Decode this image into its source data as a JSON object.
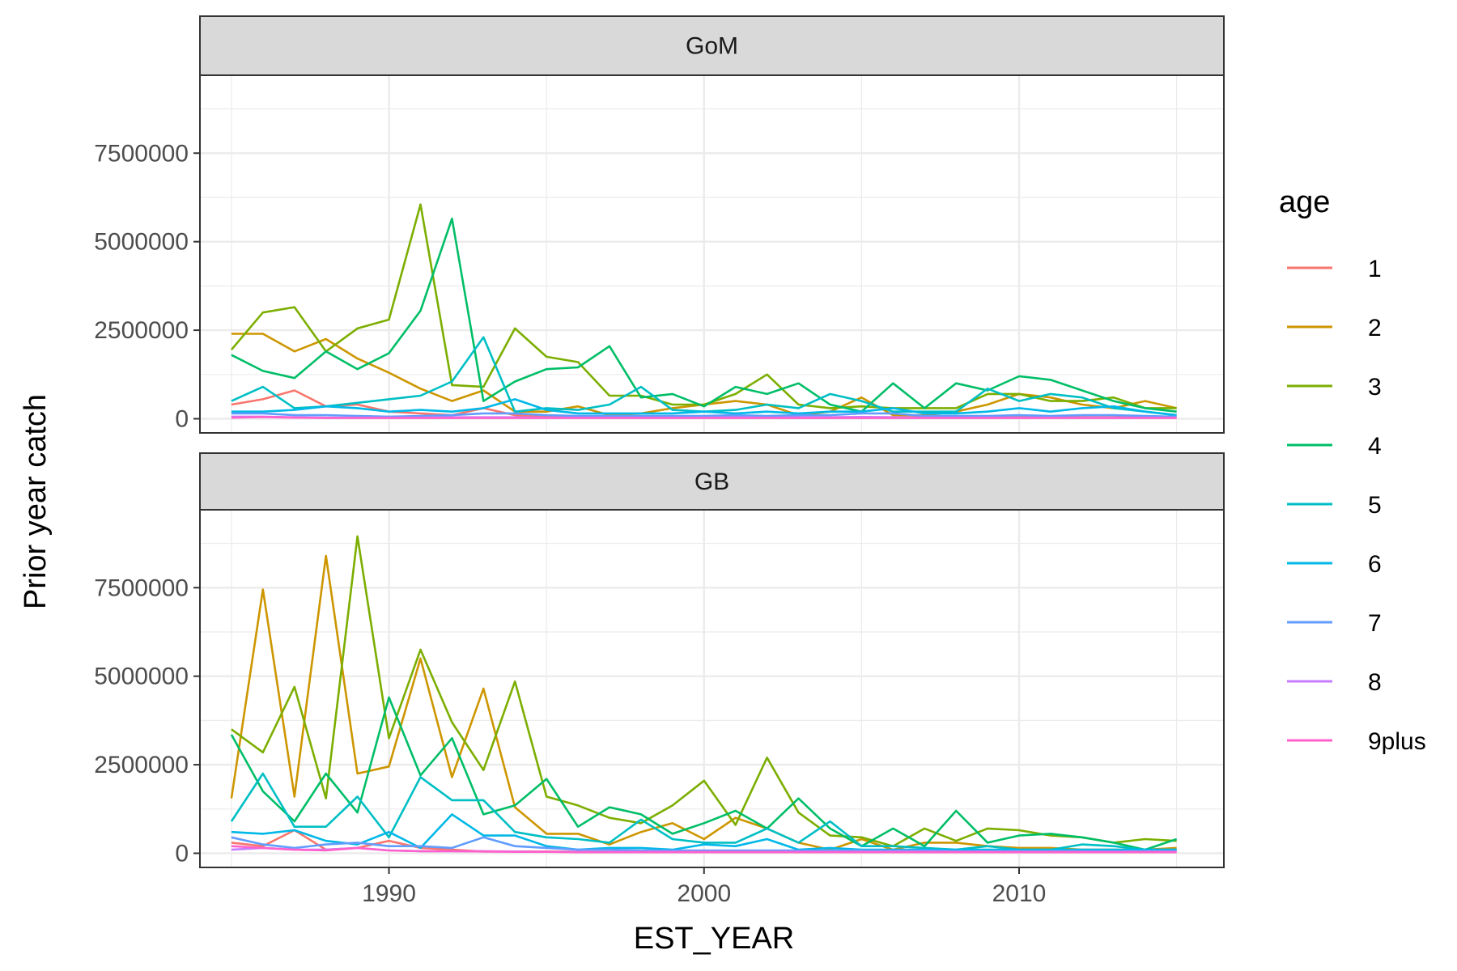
{
  "chart_data": {
    "type": "line",
    "xlabel": "EST_YEAR",
    "ylabel": "Prior year catch",
    "xlim": [
      1984,
      2016.5
    ],
    "ylim": [
      -400000,
      9700000
    ],
    "x_ticks": [
      1990,
      2000,
      2010
    ],
    "y_ticks": [
      0,
      2500000,
      5000000,
      7500000
    ],
    "grid": true,
    "legend": {
      "title": "age",
      "placement": "right"
    },
    "x": [
      1985,
      1986,
      1987,
      1988,
      1989,
      1990,
      1991,
      1992,
      1993,
      1994,
      1995,
      1996,
      1997,
      1998,
      1999,
      2000,
      2001,
      2002,
      2003,
      2004,
      2005,
      2006,
      2007,
      2008,
      2009,
      2010,
      2011,
      2012,
      2013,
      2014,
      2015
    ],
    "panels": [
      {
        "strip": "GoM",
        "series": [
          {
            "name": "1",
            "color": "#F8766D",
            "values": [
              400000,
              550000,
              800000,
              350000,
              400000,
              200000,
              150000,
              100000,
              300000,
              100000,
              50000,
              50000,
              40000,
              40000,
              40000,
              40000,
              40000,
              40000,
              40000,
              40000,
              40000,
              40000,
              40000,
              40000,
              40000,
              40000,
              40000,
              40000,
              40000,
              40000,
              40000
            ]
          },
          {
            "name": "2",
            "color": "#CD9600",
            "values": [
              2400000,
              2400000,
              1900000,
              2250000,
              1700000,
              1300000,
              850000,
              500000,
              800000,
              200000,
              200000,
              350000,
              100000,
              150000,
              300000,
              400000,
              500000,
              400000,
              100000,
              200000,
              600000,
              100000,
              100000,
              200000,
              400000,
              700000,
              600000,
              400000,
              300000,
              500000,
              300000
            ]
          },
          {
            "name": "3",
            "color": "#7CAE00",
            "values": [
              1950000,
              3000000,
              3150000,
              1900000,
              2550000,
              2800000,
              6050000,
              950000,
              900000,
              2550000,
              1750000,
              1600000,
              650000,
              650000,
              400000,
              400000,
              700000,
              1250000,
              400000,
              300000,
              350000,
              300000,
              300000,
              300000,
              700000,
              700000,
              500000,
              500000,
              600000,
              300000,
              300000
            ]
          },
          {
            "name": "4",
            "color": "#00BE67",
            "values": [
              1800000,
              1350000,
              1150000,
              1900000,
              1400000,
              1850000,
              3050000,
              5650000,
              500000,
              1050000,
              1400000,
              1450000,
              2050000,
              600000,
              700000,
              350000,
              900000,
              700000,
              1000000,
              400000,
              200000,
              1000000,
              300000,
              1000000,
              800000,
              1200000,
              1100000,
              800000,
              500000,
              300000,
              200000
            ]
          },
          {
            "name": "5",
            "color": "#00BFC4",
            "values": [
              500000,
              900000,
              300000,
              350000,
              450000,
              550000,
              650000,
              1050000,
              2300000,
              200000,
              300000,
              250000,
              400000,
              900000,
              250000,
              200000,
              250000,
              400000,
              300000,
              700000,
              500000,
              200000,
              200000,
              200000,
              850000,
              500000,
              700000,
              600000,
              300000,
              200000,
              100000
            ]
          },
          {
            "name": "6",
            "color": "#00B8E7",
            "values": [
              200000,
              200000,
              250000,
              350000,
              300000,
              200000,
              250000,
              200000,
              300000,
              550000,
              250000,
              150000,
              150000,
              150000,
              150000,
              200000,
              150000,
              200000,
              150000,
              200000,
              200000,
              300000,
              150000,
              150000,
              200000,
              300000,
              200000,
              300000,
              350000,
              200000,
              100000
            ]
          },
          {
            "name": "7",
            "color": "#619CFF",
            "values": [
              150000,
              150000,
              100000,
              100000,
              80000,
              60000,
              80000,
              100000,
              150000,
              150000,
              100000,
              80000,
              80000,
              80000,
              80000,
              80000,
              100000,
              80000,
              100000,
              100000,
              150000,
              150000,
              80000,
              80000,
              80000,
              100000,
              80000,
              100000,
              100000,
              80000,
              60000
            ]
          },
          {
            "name": "8",
            "color": "#C77CFF",
            "values": [
              60000,
              60000,
              40000,
              30000,
              30000,
              30000,
              30000,
              40000,
              40000,
              40000,
              30000,
              30000,
              30000,
              30000,
              30000,
              30000,
              40000,
              30000,
              40000,
              40000,
              50000,
              40000,
              30000,
              30000,
              30000,
              30000,
              30000,
              30000,
              30000,
              30000,
              30000
            ]
          },
          {
            "name": "9plus",
            "color": "#FF61CC",
            "values": [
              30000,
              50000,
              30000,
              20000,
              20000,
              20000,
              20000,
              20000,
              20000,
              20000,
              20000,
              20000,
              20000,
              20000,
              20000,
              20000,
              20000,
              20000,
              20000,
              20000,
              20000,
              20000,
              20000,
              20000,
              20000,
              20000,
              20000,
              20000,
              20000,
              20000,
              20000
            ]
          }
        ]
      },
      {
        "strip": "GB",
        "series": [
          {
            "name": "1",
            "color": "#F8766D",
            "values": [
              300000,
              200000,
              650000,
              100000,
              150000,
              350000,
              150000,
              100000,
              50000,
              50000,
              50000,
              40000,
              40000,
              40000,
              40000,
              40000,
              40000,
              40000,
              40000,
              40000,
              40000,
              40000,
              40000,
              40000,
              40000,
              40000,
              40000,
              40000,
              40000,
              40000,
              40000
            ]
          },
          {
            "name": "2",
            "color": "#CD9600",
            "values": [
              1550000,
              7450000,
              1600000,
              8400000,
              2250000,
              2450000,
              5500000,
              2150000,
              4650000,
              1300000,
              550000,
              550000,
              250000,
              600000,
              850000,
              400000,
              1000000,
              700000,
              300000,
              100000,
              400000,
              100000,
              300000,
              300000,
              200000,
              150000,
              150000,
              100000,
              100000,
              100000,
              150000
            ]
          },
          {
            "name": "3",
            "color": "#7CAE00",
            "values": [
              3500000,
              2850000,
              4700000,
              1550000,
              8950000,
              3250000,
              5750000,
              3700000,
              2350000,
              4850000,
              1600000,
              1350000,
              1000000,
              850000,
              1350000,
              2050000,
              800000,
              2700000,
              1150000,
              500000,
              450000,
              200000,
              700000,
              350000,
              700000,
              650000,
              500000,
              450000,
              300000,
              400000,
              350000
            ]
          },
          {
            "name": "4",
            "color": "#00BE67",
            "values": [
              3350000,
              1750000,
              900000,
              2250000,
              1150000,
              4400000,
              2200000,
              3250000,
              1100000,
              1350000,
              2100000,
              750000,
              1300000,
              1100000,
              550000,
              850000,
              1200000,
              700000,
              1550000,
              700000,
              200000,
              700000,
              200000,
              1200000,
              300000,
              500000,
              550000,
              450000,
              300000,
              100000,
              400000
            ]
          },
          {
            "name": "5",
            "color": "#00BFC4",
            "values": [
              900000,
              2250000,
              750000,
              750000,
              1600000,
              450000,
              2150000,
              1500000,
              1500000,
              600000,
              450000,
              400000,
              300000,
              950000,
              400000,
              300000,
              300000,
              700000,
              300000,
              900000,
              200000,
              200000,
              150000,
              100000,
              200000,
              100000,
              100000,
              250000,
              200000,
              100000,
              100000
            ]
          },
          {
            "name": "6",
            "color": "#00B8E7",
            "values": [
              600000,
              550000,
              650000,
              350000,
              250000,
              600000,
              150000,
              1100000,
              500000,
              500000,
              200000,
              100000,
              150000,
              150000,
              100000,
              250000,
              200000,
              400000,
              100000,
              150000,
              100000,
              100000,
              100000,
              100000,
              100000,
              100000,
              100000,
              100000,
              100000,
              100000,
              100000
            ]
          },
          {
            "name": "7",
            "color": "#619CFF",
            "values": [
              450000,
              250000,
              150000,
              250000,
              300000,
              200000,
              200000,
              150000,
              450000,
              200000,
              150000,
              100000,
              100000,
              80000,
              80000,
              80000,
              80000,
              80000,
              80000,
              80000,
              80000,
              80000,
              80000,
              60000,
              60000,
              60000,
              60000,
              60000,
              60000,
              60000,
              60000
            ]
          },
          {
            "name": "8",
            "color": "#C77CFF",
            "values": [
              100000,
              150000,
              100000,
              100000,
              150000,
              80000,
              60000,
              60000,
              60000,
              50000,
              40000,
              40000,
              40000,
              40000,
              40000,
              40000,
              40000,
              40000,
              40000,
              40000,
              40000,
              40000,
              40000,
              40000,
              40000,
              40000,
              40000,
              40000,
              40000,
              40000,
              40000
            ]
          },
          {
            "name": "9plus",
            "color": "#FF61CC",
            "values": [
              200000,
              150000,
              100000,
              80000,
              150000,
              80000,
              60000,
              60000,
              50000,
              40000,
              40000,
              30000,
              30000,
              30000,
              30000,
              30000,
              30000,
              30000,
              30000,
              30000,
              30000,
              30000,
              30000,
              30000,
              30000,
              30000,
              30000,
              30000,
              30000,
              30000,
              30000
            ]
          }
        ]
      }
    ]
  }
}
